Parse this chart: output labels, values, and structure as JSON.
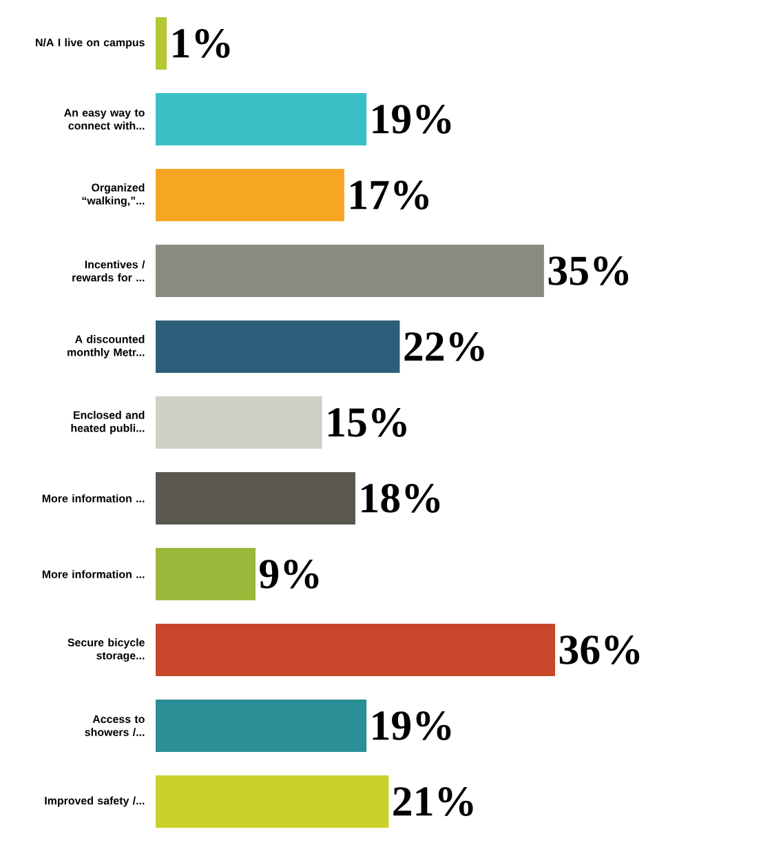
{
  "chart_data": {
    "type": "bar",
    "orientation": "horizontal",
    "categories": [
      "N/A I live on campus",
      "An easy way to connect with...",
      "Organized “walking,”...",
      "Incentives / rewards for ...",
      "A discounted monthly Metr...",
      "Enclosed and heated publi...",
      "More information ...",
      "More information ...",
      "Secure bicycle storage...",
      "Access to showers /...",
      "Improved safety /..."
    ],
    "values": [
      1,
      19,
      17,
      35,
      22,
      15,
      18,
      9,
      36,
      19,
      21
    ],
    "value_labels": [
      "1%",
      "19%",
      "17%",
      "35%",
      "22%",
      "15%",
      "18%",
      "9%",
      "36%",
      "19%",
      "21%"
    ],
    "colors": [
      "#b5c832",
      "#3bbfc7",
      "#f6a623",
      "#8a8b80",
      "#2d5f7a",
      "#d0d0c6",
      "#5a5850",
      "#9cb83a",
      "#c8462a",
      "#2a8f96",
      "#c9d12a"
    ]
  }
}
